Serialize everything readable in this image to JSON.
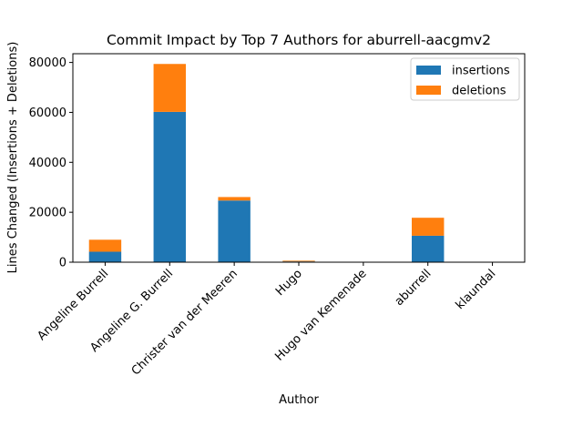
{
  "chart_data": {
    "type": "bar",
    "stacked": true,
    "title": "Commit Impact by Top 7 Authors for aburrell-aacgmv2",
    "xlabel": "Author",
    "ylabel": "Lines Changed (Insertions + Deletions)",
    "ylim": [
      0,
      83500
    ],
    "yticks": [
      0,
      20000,
      40000,
      60000,
      80000
    ],
    "ytick_labels": [
      "0",
      "20000",
      "40000",
      "60000",
      "80000"
    ],
    "grid": false,
    "legend_position": "top-right",
    "categories": [
      "Angeline Burrell",
      "Angeline G. Burrell",
      "Christer van der Meeren",
      "Hugo",
      "Hugo van Kemenade",
      "aburrell",
      "klaundal"
    ],
    "series": [
      {
        "name": "insertions",
        "color": "#1f77b4",
        "values": [
          4200,
          60200,
          24700,
          300,
          50,
          10600,
          10
        ]
      },
      {
        "name": "deletions",
        "color": "#ff7f0e",
        "values": [
          4800,
          19200,
          1400,
          300,
          20,
          7200,
          5
        ]
      }
    ]
  }
}
